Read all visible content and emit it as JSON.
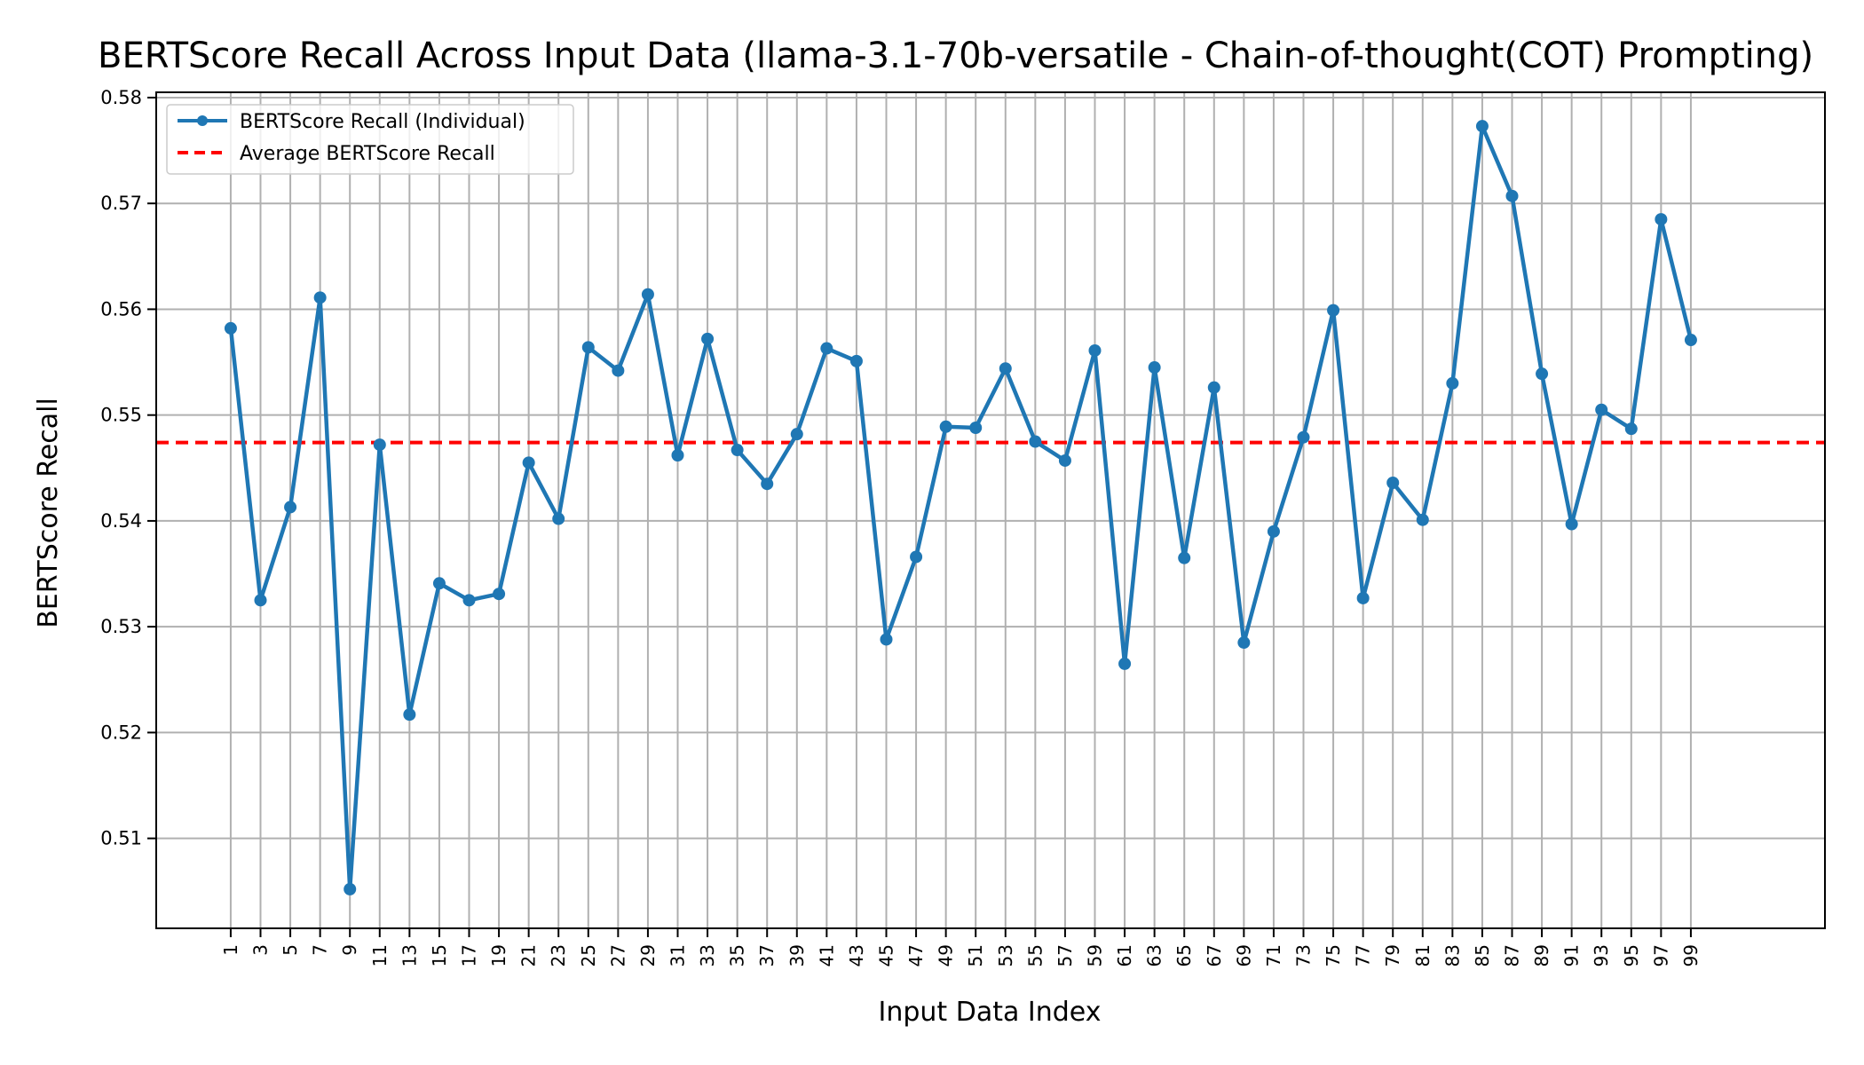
{
  "chart_data": {
    "type": "line",
    "title": "BERTScore Recall Across Input Data (llama-3.1-70b-versatile - Chain-of-thought(COT) Prompting)",
    "xlabel": "Input Data Index",
    "ylabel": "BERTScore Recall",
    "xlim": [
      -4,
      108
    ],
    "ylim": [
      0.5015,
      0.5805
    ],
    "x_ticks": [
      1,
      3,
      5,
      7,
      9,
      11,
      13,
      15,
      17,
      19,
      21,
      23,
      25,
      27,
      29,
      31,
      33,
      35,
      37,
      39,
      41,
      43,
      45,
      47,
      49,
      51,
      53,
      55,
      57,
      59,
      61,
      63,
      65,
      67,
      69,
      71,
      73,
      75,
      77,
      79,
      81,
      83,
      85,
      87,
      89,
      91,
      93,
      95,
      97,
      99
    ],
    "y_ticks": [
      "0.51",
      "0.52",
      "0.53",
      "0.54",
      "0.55",
      "0.56",
      "0.57",
      "0.58"
    ],
    "x": [
      1,
      3,
      5,
      7,
      9,
      11,
      13,
      15,
      17,
      19,
      21,
      23,
      25,
      27,
      29,
      31,
      33,
      35,
      37,
      39,
      41,
      43,
      45,
      47,
      49,
      51,
      53,
      55,
      57,
      59,
      61,
      63,
      65,
      67,
      69,
      71,
      73,
      75,
      77,
      79,
      81,
      83,
      85,
      87,
      89,
      91,
      93,
      95,
      97,
      99
    ],
    "series": [
      {
        "name": "BERTScore Recall (Individual)",
        "color": "#1f77b4",
        "style": "line-with-markers",
        "values": [
          0.5582,
          0.5325,
          0.5413,
          0.5611,
          0.5052,
          0.5472,
          0.5217,
          0.5341,
          0.5325,
          0.5331,
          0.5455,
          0.5402,
          0.5564,
          0.5542,
          0.5614,
          0.5462,
          0.5572,
          0.5467,
          0.5435,
          0.5482,
          0.5563,
          0.5551,
          0.5288,
          0.5366,
          0.5489,
          0.5488,
          0.5544,
          0.5475,
          0.5457,
          0.5561,
          0.5265,
          0.5545,
          0.5365,
          0.5526,
          0.5285,
          0.539,
          0.5479,
          0.5599,
          0.5327,
          0.5436,
          0.5401,
          0.553,
          0.5773,
          0.5707,
          0.5539,
          0.5397,
          0.5505,
          0.5487,
          0.5685,
          0.5571
        ]
      },
      {
        "name": "Average BERTScore Recall",
        "color": "#ff0000",
        "style": "dashed",
        "value": 0.5474
      }
    ],
    "grid": true,
    "legend": "top-left"
  }
}
